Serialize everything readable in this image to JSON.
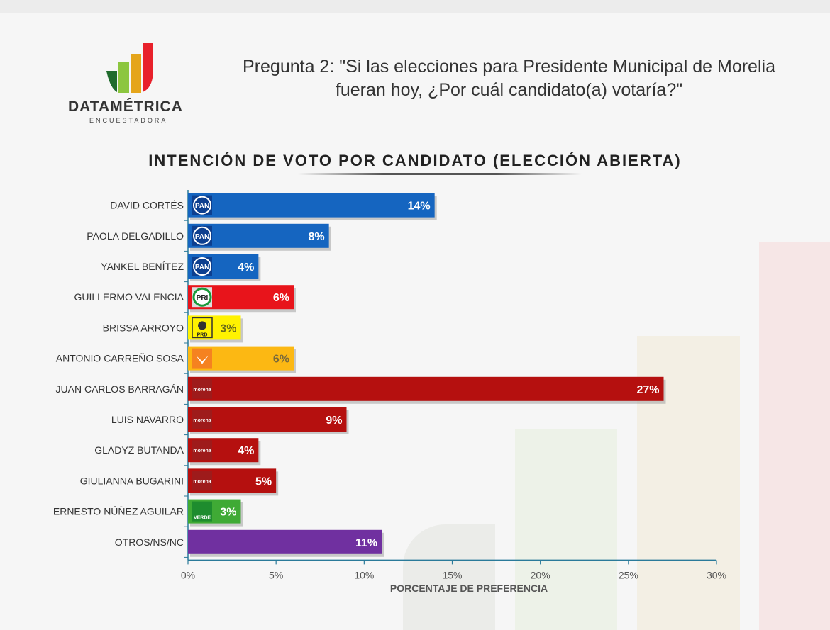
{
  "header": {
    "brand": "DATAMÉTRICA",
    "brand_sub": "ENCUESTADORA",
    "question": "Pregunta 2: \"Si las elecciones para Presidente Municipal de Morelia fueran hoy, ¿Por cuál candidato(a) votaría?\""
  },
  "chart_data": {
    "type": "bar",
    "orientation": "horizontal",
    "title": "INTENCIÓN DE VOTO POR CANDIDATO (ELECCIÓN ABIERTA)",
    "xlabel": "PORCENTAJE DE PREFERENCIA",
    "ylabel": "",
    "xlim": [
      0,
      30
    ],
    "xticks": [
      "0%",
      "5%",
      "10%",
      "15%",
      "20%",
      "25%",
      "30%"
    ],
    "grid": false,
    "categories": [
      "DAVID CORTÉS",
      "PAOLA DELGADILLO",
      "YANKEL BENÍTEZ",
      "GUILLERMO VALENCIA",
      "BRISSA ARROYO",
      "ANTONIO CARREÑO SOSA",
      "JUAN CARLOS BARRAGÁN",
      "LUIS NAVARRO",
      "GLADYZ BUTANDA",
      "GIULIANNA BUGARINI",
      "ERNESTO NÚÑEZ AGUILAR",
      "OTROS/NS/NC"
    ],
    "values": [
      14,
      8,
      4,
      6,
      3,
      6,
      27,
      9,
      4,
      5,
      3,
      11
    ],
    "labels": [
      "14%",
      "8%",
      "4%",
      "6%",
      "3%",
      "6%",
      "27%",
      "9%",
      "4%",
      "5%",
      "3%",
      "11%"
    ],
    "parties": [
      "PAN",
      "PAN",
      "PAN",
      "PRI",
      "PRD",
      "MC",
      "morena",
      "morena",
      "morena",
      "morena",
      "VERDE",
      ""
    ],
    "colors": [
      "#1565c0",
      "#1565c0",
      "#1565c0",
      "#e8141b",
      "#fff200",
      "#fcb813",
      "#b5100f",
      "#b5100f",
      "#b5100f",
      "#b5100f",
      "#3faa35",
      "#7030a0"
    ],
    "label_colors": [
      "#ffffff",
      "#ffffff",
      "#ffffff",
      "#ffffff",
      "#6b6b1a",
      "#7a6a3a",
      "#ffffff",
      "#ffffff",
      "#ffffff",
      "#ffffff",
      "#ffffff",
      "#ffffff"
    ]
  }
}
